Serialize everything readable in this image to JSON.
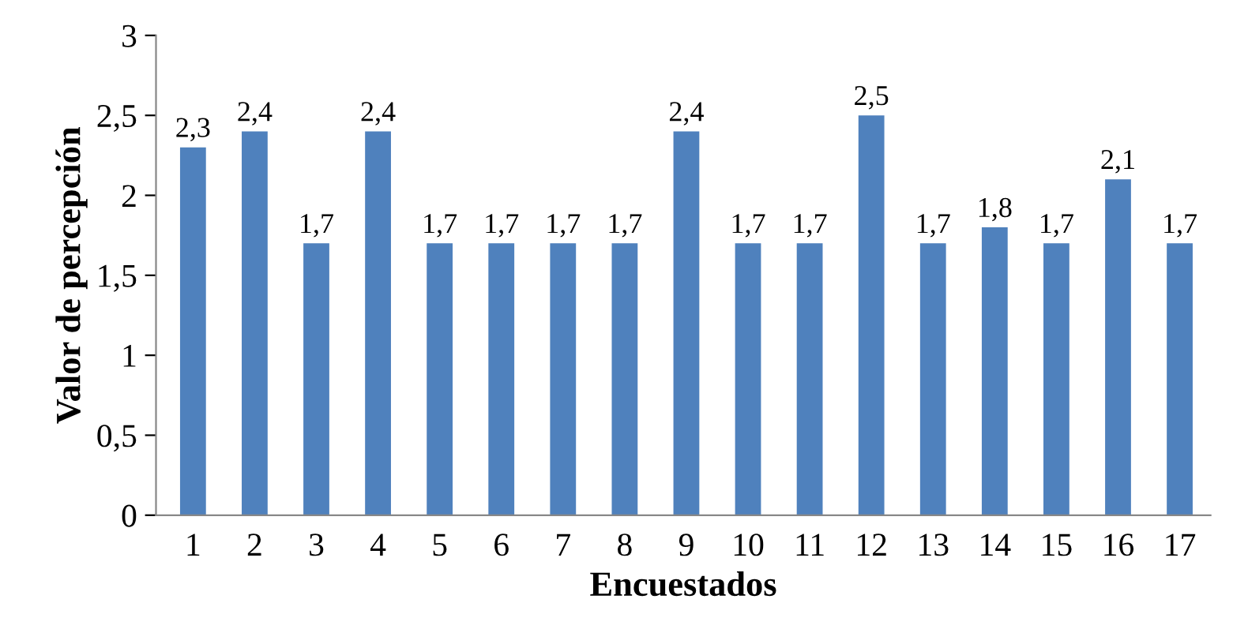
{
  "chart_data": {
    "type": "bar",
    "xlabel": "Encuestados",
    "ylabel": "Valor de percepción",
    "categories": [
      "1",
      "2",
      "3",
      "4",
      "5",
      "6",
      "7",
      "8",
      "9",
      "10",
      "11",
      "12",
      "13",
      "14",
      "15",
      "16",
      "17"
    ],
    "series": [
      {
        "color": "#4f81bd",
        "values": [
          2.3,
          2.4,
          1.7,
          2.4,
          1.7,
          1.7,
          1.7,
          1.7,
          2.4,
          1.7,
          1.7,
          2.5,
          1.7,
          1.8,
          1.7,
          2.1,
          1.7
        ],
        "value_labels": [
          "2,3",
          "2,4",
          "1,7",
          "2,4",
          "1,7",
          "1,7",
          "1,7",
          "1,7",
          "2,4",
          "1,7",
          "1,7",
          "2,5",
          "1,7",
          "1,8",
          "1,7",
          "2,1",
          "1,7"
        ]
      }
    ],
    "ylim": [
      0,
      3
    ],
    "yticks": [
      0,
      {
        "value": 0.5,
        "label": "0,5"
      },
      1,
      {
        "value": 1.5,
        "label": "1,5"
      },
      2,
      {
        "value": 2.5,
        "label": "2,5"
      },
      3
    ],
    "grid": false,
    "legend": false
  }
}
